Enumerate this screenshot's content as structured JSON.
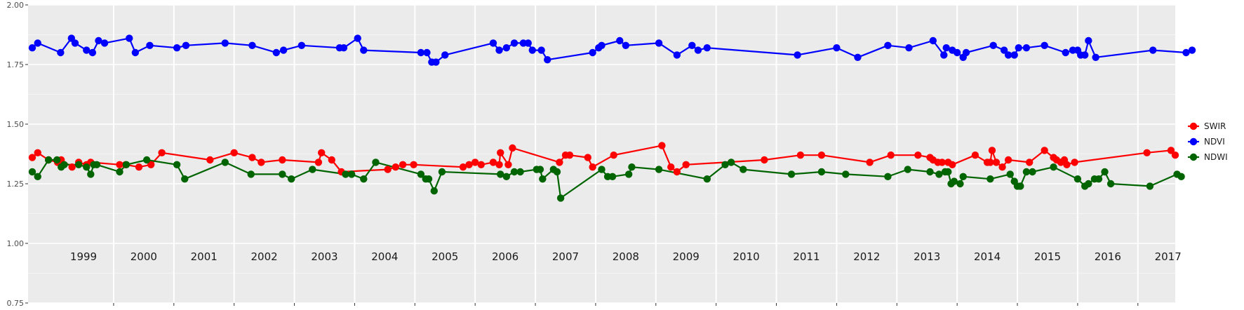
{
  "chart_data": {
    "type": "line",
    "title": "",
    "xlabel": "",
    "ylabel": "",
    "ylim": [
      0.75,
      2.0
    ],
    "xlim": [
      1998.58,
      2017.62
    ],
    "yticks": [
      "0.75",
      "1.00",
      "1.25",
      "1.50",
      "1.75",
      "2.00"
    ],
    "year_labels": [
      "1999",
      "2000",
      "2001",
      "2002",
      "2003",
      "2004",
      "2005",
      "2006",
      "2007",
      "2008",
      "2009",
      "2010",
      "2011",
      "2012",
      "2013",
      "2014",
      "2015",
      "2016",
      "2017"
    ],
    "grid": true,
    "legend_position": "right",
    "colors": {
      "panel": "#ebebeb",
      "grid_major": "#ffffff",
      "grid_minor": "#f5f5f5"
    },
    "series": [
      {
        "name": "SWIR",
        "color": "#ff0000",
        "points": [
          [
            1998.65,
            1.36
          ],
          [
            1998.74,
            1.38
          ],
          [
            1998.92,
            1.35
          ],
          [
            1999.07,
            1.34
          ],
          [
            1999.13,
            1.35
          ],
          [
            1999.31,
            1.32
          ],
          [
            1999.42,
            1.34
          ],
          [
            1999.55,
            1.33
          ],
          [
            1999.62,
            1.34
          ],
          [
            2000.1,
            1.33
          ],
          [
            2000.2,
            1.33
          ],
          [
            2000.42,
            1.32
          ],
          [
            2000.62,
            1.33
          ],
          [
            2000.8,
            1.38
          ],
          [
            2001.6,
            1.35
          ],
          [
            2002.0,
            1.38
          ],
          [
            2002.3,
            1.36
          ],
          [
            2002.45,
            1.34
          ],
          [
            2002.8,
            1.35
          ],
          [
            2003.4,
            1.34
          ],
          [
            2003.45,
            1.38
          ],
          [
            2003.62,
            1.35
          ],
          [
            2003.78,
            1.3
          ],
          [
            2004.55,
            1.31
          ],
          [
            2004.68,
            1.32
          ],
          [
            2004.8,
            1.33
          ],
          [
            2004.98,
            1.33
          ],
          [
            2005.8,
            1.32
          ],
          [
            2005.9,
            1.33
          ],
          [
            2006.0,
            1.34
          ],
          [
            2006.1,
            1.33
          ],
          [
            2006.3,
            1.34
          ],
          [
            2006.4,
            1.33
          ],
          [
            2006.42,
            1.38
          ],
          [
            2006.55,
            1.33
          ],
          [
            2006.62,
            1.4
          ],
          [
            2007.4,
            1.34
          ],
          [
            2007.5,
            1.37
          ],
          [
            2007.57,
            1.37
          ],
          [
            2007.87,
            1.36
          ],
          [
            2007.95,
            1.32
          ],
          [
            2008.3,
            1.37
          ],
          [
            2009.1,
            1.41
          ],
          [
            2009.25,
            1.32
          ],
          [
            2009.35,
            1.3
          ],
          [
            2009.5,
            1.33
          ],
          [
            2010.8,
            1.35
          ],
          [
            2011.4,
            1.37
          ],
          [
            2011.75,
            1.37
          ],
          [
            2012.55,
            1.34
          ],
          [
            2012.9,
            1.37
          ],
          [
            2013.35,
            1.37
          ],
          [
            2013.55,
            1.36
          ],
          [
            2013.6,
            1.35
          ],
          [
            2013.68,
            1.34
          ],
          [
            2013.75,
            1.34
          ],
          [
            2013.85,
            1.34
          ],
          [
            2013.92,
            1.33
          ],
          [
            2014.3,
            1.37
          ],
          [
            2014.5,
            1.34
          ],
          [
            2014.55,
            1.34
          ],
          [
            2014.58,
            1.39
          ],
          [
            2014.65,
            1.34
          ],
          [
            2014.75,
            1.32
          ],
          [
            2014.85,
            1.35
          ],
          [
            2015.2,
            1.34
          ],
          [
            2015.45,
            1.39
          ],
          [
            2015.6,
            1.36
          ],
          [
            2015.65,
            1.35
          ],
          [
            2015.72,
            1.34
          ],
          [
            2015.78,
            1.35
          ],
          [
            2015.82,
            1.33
          ],
          [
            2015.95,
            1.34
          ],
          [
            2017.15,
            1.38
          ],
          [
            2017.55,
            1.39
          ],
          [
            2017.62,
            1.37
          ]
        ]
      },
      {
        "name": "NDVI",
        "color": "#0000ff",
        "points": [
          [
            1998.65,
            1.82
          ],
          [
            1998.74,
            1.84
          ],
          [
            1999.12,
            1.8
          ],
          [
            1999.3,
            1.86
          ],
          [
            1999.36,
            1.84
          ],
          [
            1999.55,
            1.81
          ],
          [
            1999.65,
            1.8
          ],
          [
            1999.75,
            1.85
          ],
          [
            1999.85,
            1.84
          ],
          [
            2000.26,
            1.86
          ],
          [
            2000.36,
            1.8
          ],
          [
            2000.6,
            1.83
          ],
          [
            2001.05,
            1.82
          ],
          [
            2001.2,
            1.83
          ],
          [
            2001.85,
            1.84
          ],
          [
            2002.3,
            1.83
          ],
          [
            2002.7,
            1.8
          ],
          [
            2002.82,
            1.81
          ],
          [
            2003.12,
            1.83
          ],
          [
            2003.75,
            1.82
          ],
          [
            2003.82,
            1.82
          ],
          [
            2004.05,
            1.86
          ],
          [
            2004.15,
            1.81
          ],
          [
            2005.1,
            1.8
          ],
          [
            2005.2,
            1.8
          ],
          [
            2005.28,
            1.76
          ],
          [
            2005.35,
            1.76
          ],
          [
            2005.5,
            1.79
          ],
          [
            2006.3,
            1.84
          ],
          [
            2006.4,
            1.81
          ],
          [
            2006.52,
            1.82
          ],
          [
            2006.65,
            1.84
          ],
          [
            2006.8,
            1.84
          ],
          [
            2006.88,
            1.84
          ],
          [
            2006.95,
            1.81
          ],
          [
            2007.1,
            1.81
          ],
          [
            2007.2,
            1.77
          ],
          [
            2007.95,
            1.8
          ],
          [
            2008.05,
            1.82
          ],
          [
            2008.1,
            1.83
          ],
          [
            2008.4,
            1.85
          ],
          [
            2008.5,
            1.83
          ],
          [
            2009.05,
            1.84
          ],
          [
            2009.35,
            1.79
          ],
          [
            2009.6,
            1.83
          ],
          [
            2009.7,
            1.81
          ],
          [
            2009.85,
            1.82
          ],
          [
            2011.35,
            1.79
          ],
          [
            2012.0,
            1.82
          ],
          [
            2012.35,
            1.78
          ],
          [
            2012.85,
            1.83
          ],
          [
            2013.2,
            1.82
          ],
          [
            2013.6,
            1.85
          ],
          [
            2013.78,
            1.79
          ],
          [
            2013.82,
            1.82
          ],
          [
            2013.92,
            1.81
          ],
          [
            2014.0,
            1.8
          ],
          [
            2014.1,
            1.78
          ],
          [
            2014.15,
            1.8
          ],
          [
            2014.6,
            1.83
          ],
          [
            2014.78,
            1.81
          ],
          [
            2014.85,
            1.79
          ],
          [
            2014.95,
            1.79
          ],
          [
            2015.02,
            1.82
          ],
          [
            2015.15,
            1.82
          ],
          [
            2015.45,
            1.83
          ],
          [
            2015.8,
            1.8
          ],
          [
            2015.92,
            1.81
          ],
          [
            2016.0,
            1.81
          ],
          [
            2016.05,
            1.79
          ],
          [
            2016.12,
            1.79
          ],
          [
            2016.18,
            1.85
          ],
          [
            2016.3,
            1.78
          ],
          [
            2017.25,
            1.81
          ],
          [
            2017.8,
            1.8
          ],
          [
            2017.9,
            1.81
          ]
        ]
      },
      {
        "name": "NDWI",
        "color": "#006400",
        "points": [
          [
            1998.65,
            1.3
          ],
          [
            1998.74,
            1.28
          ],
          [
            1998.92,
            1.35
          ],
          [
            1999.06,
            1.35
          ],
          [
            1999.13,
            1.32
          ],
          [
            1999.18,
            1.33
          ],
          [
            1999.42,
            1.33
          ],
          [
            1999.55,
            1.32
          ],
          [
            1999.62,
            1.29
          ],
          [
            1999.67,
            1.33
          ],
          [
            1999.72,
            1.33
          ],
          [
            2000.1,
            1.3
          ],
          [
            2000.21,
            1.33
          ],
          [
            2000.55,
            1.35
          ],
          [
            2001.05,
            1.33
          ],
          [
            2001.18,
            1.27
          ],
          [
            2001.85,
            1.34
          ],
          [
            2002.28,
            1.29
          ],
          [
            2002.8,
            1.29
          ],
          [
            2002.95,
            1.27
          ],
          [
            2003.3,
            1.31
          ],
          [
            2003.85,
            1.29
          ],
          [
            2003.95,
            1.29
          ],
          [
            2004.15,
            1.27
          ],
          [
            2004.35,
            1.34
          ],
          [
            2005.1,
            1.29
          ],
          [
            2005.18,
            1.27
          ],
          [
            2005.23,
            1.27
          ],
          [
            2005.32,
            1.22
          ],
          [
            2005.45,
            1.3
          ],
          [
            2006.42,
            1.29
          ],
          [
            2006.52,
            1.28
          ],
          [
            2006.65,
            1.3
          ],
          [
            2006.75,
            1.3
          ],
          [
            2007.02,
            1.31
          ],
          [
            2007.08,
            1.31
          ],
          [
            2007.12,
            1.27
          ],
          [
            2007.3,
            1.31
          ],
          [
            2007.36,
            1.3
          ],
          [
            2007.42,
            1.19
          ],
          [
            2008.1,
            1.31
          ],
          [
            2008.2,
            1.28
          ],
          [
            2008.28,
            1.28
          ],
          [
            2008.55,
            1.29
          ],
          [
            2008.6,
            1.32
          ],
          [
            2009.05,
            1.31
          ],
          [
            2009.85,
            1.27
          ],
          [
            2010.15,
            1.33
          ],
          [
            2010.25,
            1.34
          ],
          [
            2010.45,
            1.31
          ],
          [
            2011.25,
            1.29
          ],
          [
            2011.75,
            1.3
          ],
          [
            2012.15,
            1.29
          ],
          [
            2012.85,
            1.28
          ],
          [
            2013.18,
            1.31
          ],
          [
            2013.55,
            1.3
          ],
          [
            2013.7,
            1.29
          ],
          [
            2013.8,
            1.3
          ],
          [
            2013.85,
            1.3
          ],
          [
            2013.9,
            1.25
          ],
          [
            2013.95,
            1.26
          ],
          [
            2014.05,
            1.25
          ],
          [
            2014.1,
            1.28
          ],
          [
            2014.55,
            1.27
          ],
          [
            2014.88,
            1.29
          ],
          [
            2014.95,
            1.26
          ],
          [
            2015.0,
            1.24
          ],
          [
            2015.05,
            1.24
          ],
          [
            2015.15,
            1.3
          ],
          [
            2015.25,
            1.3
          ],
          [
            2015.6,
            1.32
          ],
          [
            2016.0,
            1.27
          ],
          [
            2016.12,
            1.24
          ],
          [
            2016.18,
            1.25
          ],
          [
            2016.28,
            1.27
          ],
          [
            2016.35,
            1.27
          ],
          [
            2016.45,
            1.3
          ],
          [
            2016.55,
            1.25
          ],
          [
            2017.2,
            1.24
          ],
          [
            2017.65,
            1.29
          ],
          [
            2017.72,
            1.28
          ]
        ]
      }
    ]
  }
}
